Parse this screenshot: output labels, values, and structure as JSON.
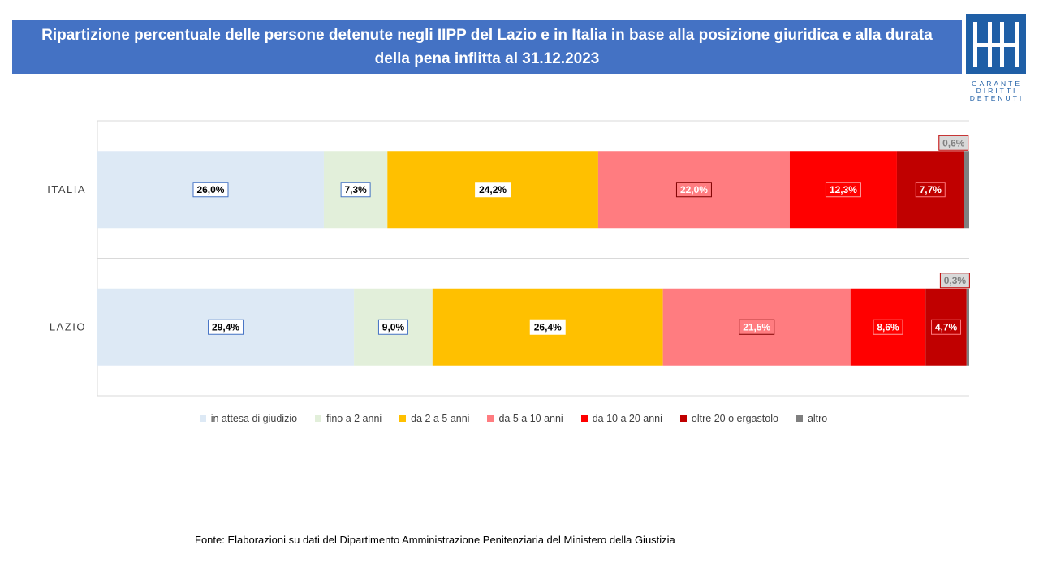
{
  "title": "Ripartizione percentuale delle persone detenute negli IIPP del Lazio e in Italia in base alla posizione giuridica e alla durata della pena inflitta al 31.12.2023",
  "logo": {
    "lines": [
      "GARANTE",
      "DIRITTI",
      "DETENUTI"
    ]
  },
  "source": "Fonte:  Elaborazioni su dati del Dipartimento  Amministrazione  Penitenziaria del Ministero della Giustizia",
  "colors": {
    "banner": "#4472c4",
    "series": [
      "#dde9f5",
      "#e2efda",
      "#ffc000",
      "#ff7c80",
      "#ff0000",
      "#c00000",
      "#7f7f7f"
    ]
  },
  "chart_data": {
    "type": "bar",
    "orientation": "horizontal",
    "stacked": "percent",
    "categories": [
      "ITALIA",
      "LAZIO"
    ],
    "series": [
      {
        "name": "in attesa di giudizio",
        "values": [
          26.0,
          29.4
        ],
        "labels": [
          "26,0%",
          "29,4%"
        ]
      },
      {
        "name": "fino a 2 anni",
        "values": [
          7.3,
          9.0
        ],
        "labels": [
          "7,3%",
          "9,0%"
        ]
      },
      {
        "name": "da 2 a 5 anni",
        "values": [
          24.2,
          26.4
        ],
        "labels": [
          "24,2%",
          "26,4%"
        ]
      },
      {
        "name": "da 5 a 10 anni",
        "values": [
          22.0,
          21.5
        ],
        "labels": [
          "22,0%",
          "21,5%"
        ]
      },
      {
        "name": "da 10 a 20 anni",
        "values": [
          12.3,
          8.6
        ],
        "labels": [
          "12,3%",
          "8,6%"
        ]
      },
      {
        "name": "oltre 20 o ergastolo",
        "values": [
          7.7,
          4.7
        ],
        "labels": [
          "7,7%",
          "4,7%"
        ]
      },
      {
        "name": "altro",
        "values": [
          0.6,
          0.3
        ],
        "labels": [
          "0,6%",
          "0,3%"
        ]
      }
    ],
    "legend_position": "bottom",
    "grid": false
  }
}
